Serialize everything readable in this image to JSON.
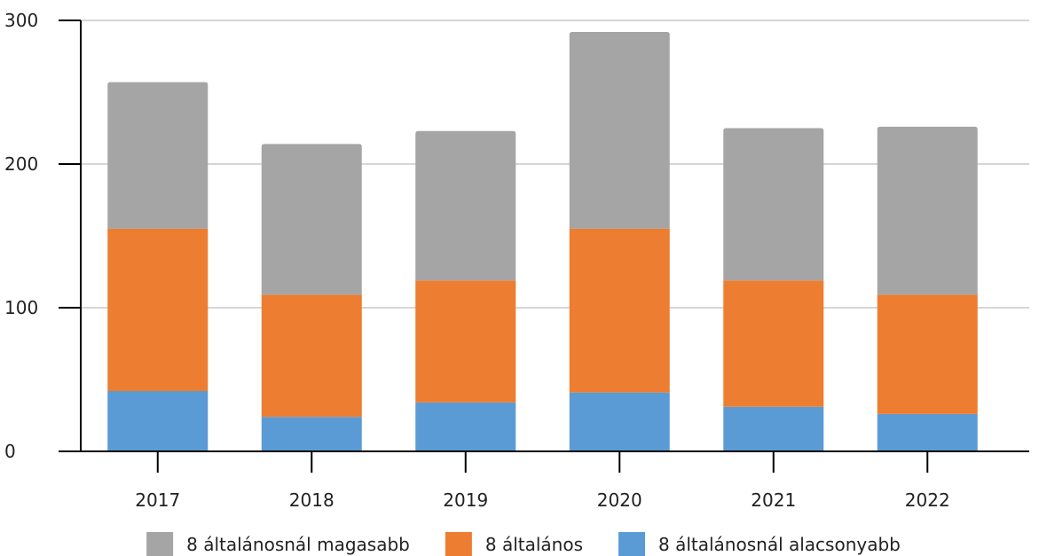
{
  "chart_data": {
    "type": "bar",
    "stacked": true,
    "categories": [
      "2017",
      "2018",
      "2019",
      "2020",
      "2021",
      "2022"
    ],
    "series": [
      {
        "name": "8 általánosnál alacsonyabb",
        "color": "#5b9bd5",
        "values": [
          42,
          24,
          34,
          41,
          31,
          26
        ]
      },
      {
        "name": "8 általános",
        "color": "#ed7d31",
        "values": [
          113,
          85,
          85,
          114,
          88,
          83
        ]
      },
      {
        "name": "8 általánosnál magasabb",
        "color": "#a5a5a5",
        "values": [
          102,
          105,
          104,
          137,
          106,
          117
        ]
      }
    ],
    "legend_order": [
      2,
      1,
      0
    ],
    "ylim": [
      0,
      300
    ],
    "yticks": [
      0,
      100,
      200,
      300
    ],
    "ytick_labels": [
      "0",
      "100",
      "200",
      "300"
    ],
    "grid": true,
    "legend_position": "bottom",
    "title": "",
    "xlabel": "",
    "ylabel": ""
  }
}
